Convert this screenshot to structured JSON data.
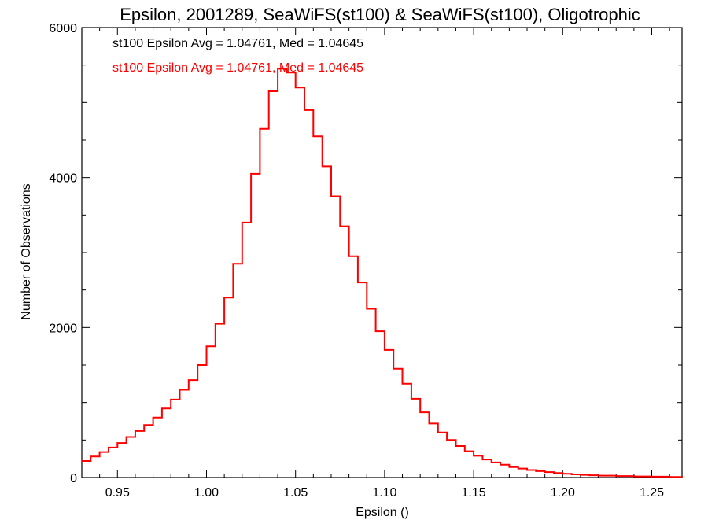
{
  "chart_data": {
    "type": "histogram",
    "title": "Epsilon, 2001289, SeaWiFS(st100) & SeaWiFS(st100), Oligotrophic",
    "xlabel": "Epsilon ()",
    "ylabel": "Number of Observations",
    "xlim": [
      0.93,
      1.267
    ],
    "ylim": [
      0,
      6000
    ],
    "x_ticks": [
      0.95,
      1.0,
      1.05,
      1.1,
      1.15,
      1.2,
      1.25
    ],
    "x_tick_labels": [
      "0.95",
      "1.00",
      "1.05",
      "1.10",
      "1.15",
      "1.20",
      "1.25"
    ],
    "y_ticks": [
      0,
      2000,
      4000,
      6000
    ],
    "y_tick_labels": [
      "0",
      "2000",
      "4000",
      "6000"
    ],
    "y_minor_step": 1000,
    "grid": false,
    "annotations": [
      {
        "text": "st100 Epsilon Avg = 1.04761, Med = 1.04645",
        "color": "#000000"
      },
      {
        "text": "st100 Epsilon Avg = 1.04761, Med = 1.04645",
        "color": "#ff0000"
      }
    ],
    "series": [
      {
        "color": "#ff0000",
        "style": "step",
        "points": [
          [
            0.93,
            220
          ],
          [
            0.935,
            280
          ],
          [
            0.94,
            340
          ],
          [
            0.945,
            400
          ],
          [
            0.95,
            460
          ],
          [
            0.955,
            540
          ],
          [
            0.96,
            620
          ],
          [
            0.965,
            700
          ],
          [
            0.97,
            800
          ],
          [
            0.975,
            920
          ],
          [
            0.98,
            1040
          ],
          [
            0.985,
            1170
          ],
          [
            0.99,
            1300
          ],
          [
            0.995,
            1500
          ],
          [
            1.0,
            1750
          ],
          [
            1.005,
            2050
          ],
          [
            1.01,
            2400
          ],
          [
            1.015,
            2850
          ],
          [
            1.02,
            3400
          ],
          [
            1.025,
            4050
          ],
          [
            1.03,
            4650
          ],
          [
            1.035,
            5150
          ],
          [
            1.04,
            5450
          ],
          [
            1.045,
            5400
          ],
          [
            1.05,
            5200
          ],
          [
            1.055,
            4900
          ],
          [
            1.06,
            4550
          ],
          [
            1.065,
            4150
          ],
          [
            1.07,
            3750
          ],
          [
            1.075,
            3350
          ],
          [
            1.08,
            2950
          ],
          [
            1.085,
            2600
          ],
          [
            1.09,
            2250
          ],
          [
            1.095,
            1950
          ],
          [
            1.1,
            1700
          ],
          [
            1.105,
            1450
          ],
          [
            1.11,
            1250
          ],
          [
            1.115,
            1050
          ],
          [
            1.12,
            870
          ],
          [
            1.125,
            720
          ],
          [
            1.13,
            600
          ],
          [
            1.135,
            500
          ],
          [
            1.14,
            420
          ],
          [
            1.145,
            350
          ],
          [
            1.15,
            290
          ],
          [
            1.155,
            240
          ],
          [
            1.16,
            200
          ],
          [
            1.165,
            170
          ],
          [
            1.17,
            140
          ],
          [
            1.175,
            120
          ],
          [
            1.18,
            100
          ],
          [
            1.185,
            85
          ],
          [
            1.19,
            72
          ],
          [
            1.195,
            60
          ],
          [
            1.2,
            50
          ],
          [
            1.205,
            42
          ],
          [
            1.21,
            36
          ],
          [
            1.215,
            30
          ],
          [
            1.22,
            25
          ],
          [
            1.23,
            20
          ],
          [
            1.24,
            15
          ],
          [
            1.25,
            12
          ],
          [
            1.26,
            8
          ],
          [
            1.267,
            6
          ]
        ]
      }
    ]
  }
}
